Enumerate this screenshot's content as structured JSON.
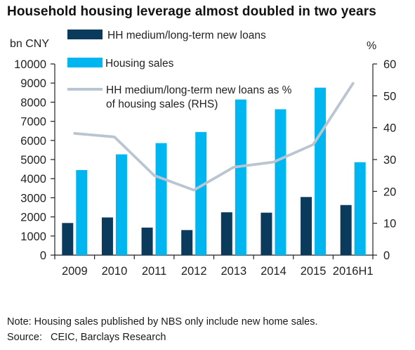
{
  "chart_data": {
    "type": "bar",
    "title": "Household housing leverage almost doubled in two years",
    "categories": [
      "2009",
      "2010",
      "2011",
      "2012",
      "2013",
      "2014",
      "2015",
      "2016H1"
    ],
    "series": [
      {
        "name": "HH medium/long-term new loans",
        "type": "bar",
        "axis": "left",
        "color": "#0a3a5c",
        "values": [
          1680,
          1970,
          1440,
          1310,
          2240,
          2220,
          3040,
          2620
        ]
      },
      {
        "name": "Housing sales",
        "type": "bar",
        "axis": "left",
        "color": "#00b6f0",
        "values": [
          4450,
          5270,
          5860,
          6440,
          8140,
          7630,
          8760,
          4860
        ]
      },
      {
        "name": "HH medium/long-term new loans as % of housing sales (RHS)",
        "legend_lines": [
          "HH medium/long-term new loans as %",
          "of housing sales (RHS)"
        ],
        "type": "line",
        "axis": "right",
        "color": "#b9c6d1",
        "values": [
          38.2,
          37.1,
          25.0,
          20.4,
          27.6,
          29.2,
          34.7,
          53.9
        ]
      }
    ],
    "left_axis": {
      "label": "bn CNY",
      "ylim": [
        0,
        10000
      ],
      "ticks": [
        "0",
        "1000",
        "2000",
        "3000",
        "4000",
        "5000",
        "6000",
        "7000",
        "8000",
        "9000",
        "10000"
      ]
    },
    "right_axis": {
      "label": "%",
      "ylim": [
        0,
        60
      ],
      "ticks": [
        "0",
        "10",
        "20",
        "30",
        "40",
        "50",
        "60"
      ]
    },
    "grid": false,
    "legend_position": "top-left"
  },
  "footer": {
    "note": "Note: Housing sales published by NBS only include new home sales.",
    "source_label": "Source:",
    "source_text": "CEIC, Barclays Research"
  }
}
